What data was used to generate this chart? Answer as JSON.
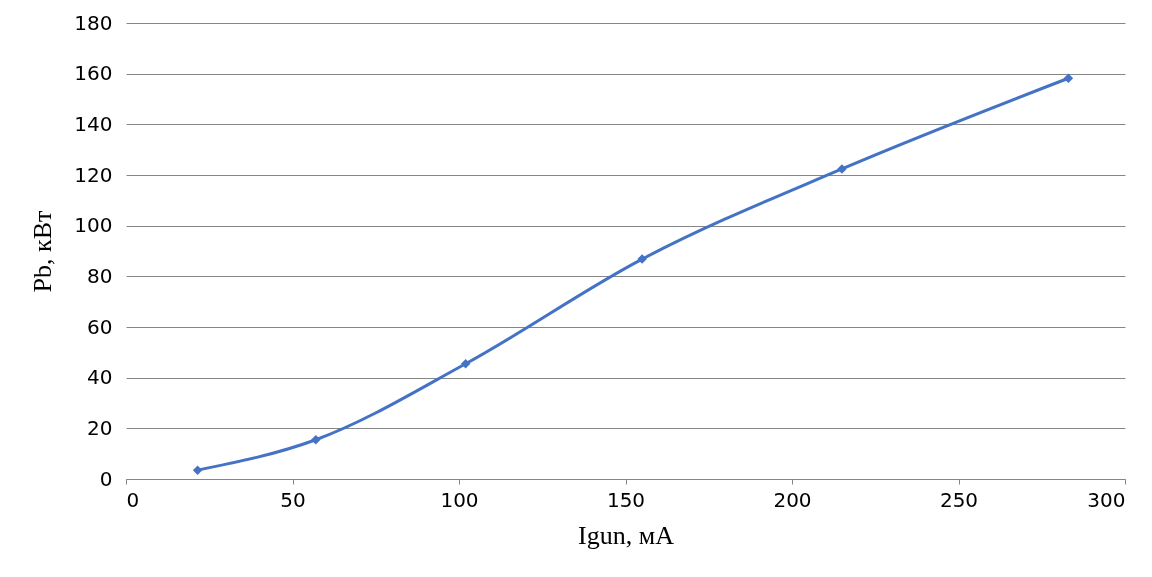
{
  "chart_data": {
    "type": "line",
    "xlabel": "Igun, мА",
    "ylabel": "Pb, кВт",
    "x": [
      21.5,
      57,
      102,
      155,
      215,
      283
    ],
    "series": [
      {
        "color": "#4472c4",
        "values": [
          3.5,
          15.5,
          45.5,
          86.8,
          122.4,
          158.2
        ]
      }
    ],
    "xlim": [
      0,
      300
    ],
    "xticks": [
      0,
      50,
      100,
      150,
      200,
      250,
      300
    ],
    "ylim": [
      0,
      180
    ],
    "yticks": [
      0,
      20,
      40,
      60,
      80,
      100,
      120,
      140,
      160,
      180
    ],
    "grid": "y",
    "marker": "diamond",
    "line_style": "solid"
  }
}
